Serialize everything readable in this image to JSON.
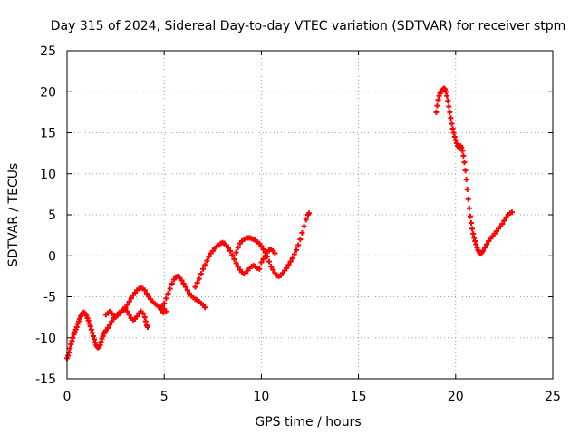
{
  "chart_data": {
    "type": "scatter",
    "title": "Day 315 of 2024, Sidereal Day-to-day VTEC variation (SDTVAR) for receiver stpm",
    "xlabel": "GPS time / hours",
    "ylabel": "SDTVAR / TECUs",
    "xlim": [
      0,
      25
    ],
    "ylim": [
      -15,
      25
    ],
    "xticks": [
      0,
      5,
      10,
      15,
      20,
      25
    ],
    "yticks": [
      -15,
      -10,
      -5,
      0,
      5,
      10,
      15,
      20,
      25
    ],
    "grid": true,
    "marker": "+",
    "series": [
      {
        "name": "SDTVAR",
        "color": "#ff0000",
        "points": [
          [
            0.0,
            -12.5
          ],
          [
            0.05,
            -12.2
          ],
          [
            0.1,
            -11.8
          ],
          [
            0.15,
            -11.3
          ],
          [
            0.2,
            -10.8
          ],
          [
            0.25,
            -10.4
          ],
          [
            0.3,
            -10.0
          ],
          [
            0.35,
            -9.6
          ],
          [
            0.4,
            -9.3
          ],
          [
            0.45,
            -9.0
          ],
          [
            0.5,
            -8.7
          ],
          [
            0.55,
            -8.3
          ],
          [
            0.6,
            -8.0
          ],
          [
            0.65,
            -7.7
          ],
          [
            0.7,
            -7.4
          ],
          [
            0.75,
            -7.2
          ],
          [
            0.8,
            -7.0
          ],
          [
            0.85,
            -6.9
          ],
          [
            0.9,
            -7.0
          ],
          [
            0.95,
            -7.1
          ],
          [
            1.0,
            -7.3
          ],
          [
            1.05,
            -7.6
          ],
          [
            1.1,
            -7.9
          ],
          [
            1.15,
            -8.3
          ],
          [
            1.2,
            -8.6
          ],
          [
            1.25,
            -9.0
          ],
          [
            1.3,
            -9.4
          ],
          [
            1.35,
            -9.8
          ],
          [
            1.4,
            -10.2
          ],
          [
            1.45,
            -10.6
          ],
          [
            1.5,
            -10.9
          ],
          [
            1.55,
            -11.1
          ],
          [
            1.6,
            -11.2
          ],
          [
            1.65,
            -11.1
          ],
          [
            1.7,
            -10.9
          ],
          [
            1.75,
            -10.5
          ],
          [
            1.8,
            -10.1
          ],
          [
            1.85,
            -9.8
          ],
          [
            1.9,
            -9.5
          ],
          [
            1.95,
            -9.3
          ],
          [
            2.0,
            -9.1
          ],
          [
            2.1,
            -8.8
          ],
          [
            2.2,
            -8.4
          ],
          [
            2.3,
            -8.0
          ],
          [
            2.4,
            -7.6
          ],
          [
            2.5,
            -7.3
          ],
          [
            2.6,
            -7.1
          ],
          [
            2.7,
            -6.9
          ],
          [
            2.8,
            -6.8
          ],
          [
            2.9,
            -6.6
          ],
          [
            3.0,
            -6.3
          ],
          [
            3.1,
            -6.0
          ],
          [
            3.2,
            -5.6
          ],
          [
            3.3,
            -5.2
          ],
          [
            3.4,
            -4.8
          ],
          [
            3.5,
            -4.5
          ],
          [
            3.6,
            -4.2
          ],
          [
            3.7,
            -4.0
          ],
          [
            3.8,
            -3.9
          ],
          [
            3.9,
            -4.0
          ],
          [
            4.0,
            -4.2
          ],
          [
            4.1,
            -4.6
          ],
          [
            4.2,
            -5.0
          ],
          [
            4.3,
            -5.3
          ],
          [
            4.4,
            -5.6
          ],
          [
            4.5,
            -5.8
          ],
          [
            4.6,
            -6.0
          ],
          [
            4.7,
            -6.2
          ],
          [
            4.8,
            -6.3
          ],
          [
            4.9,
            -6.2
          ],
          [
            5.0,
            -5.8
          ],
          [
            5.1,
            -5.2
          ],
          [
            5.2,
            -4.6
          ],
          [
            5.3,
            -4.0
          ],
          [
            5.4,
            -3.4
          ],
          [
            5.5,
            -2.9
          ],
          [
            5.6,
            -2.6
          ],
          [
            5.7,
            -2.5
          ],
          [
            5.8,
            -2.7
          ],
          [
            5.9,
            -3.0
          ],
          [
            6.0,
            -3.4
          ],
          [
            6.1,
            -3.8
          ],
          [
            6.2,
            -4.2
          ],
          [
            6.3,
            -4.6
          ],
          [
            6.4,
            -4.9
          ],
          [
            6.5,
            -5.1
          ],
          [
            6.6,
            -5.3
          ],
          [
            6.7,
            -5.4
          ],
          [
            6.8,
            -5.6
          ],
          [
            6.9,
            -5.8
          ],
          [
            7.0,
            -6.0
          ],
          [
            7.1,
            -6.3
          ],
          [
            2.0,
            -7.2
          ],
          [
            2.1,
            -7.0
          ],
          [
            2.2,
            -6.8
          ],
          [
            2.3,
            -7.0
          ],
          [
            2.4,
            -7.3
          ],
          [
            2.5,
            -7.5
          ],
          [
            2.6,
            -7.3
          ],
          [
            2.7,
            -7.0
          ],
          [
            2.8,
            -6.7
          ],
          [
            2.9,
            -6.5
          ],
          [
            3.0,
            -6.5
          ],
          [
            3.1,
            -6.8
          ],
          [
            3.2,
            -7.2
          ],
          [
            3.3,
            -7.6
          ],
          [
            3.4,
            -7.8
          ],
          [
            3.5,
            -7.7
          ],
          [
            3.6,
            -7.4
          ],
          [
            3.7,
            -7.0
          ],
          [
            3.8,
            -6.8
          ],
          [
            3.9,
            -7.0
          ],
          [
            4.0,
            -7.5
          ],
          [
            4.05,
            -8.0
          ],
          [
            4.1,
            -8.5
          ],
          [
            4.15,
            -8.7
          ],
          [
            5.0,
            -6.5
          ],
          [
            5.1,
            -6.8
          ],
          [
            4.95,
            -6.9
          ],
          [
            4.85,
            -6.6
          ],
          [
            6.6,
            -3.8
          ],
          [
            6.7,
            -3.3
          ],
          [
            6.8,
            -2.8
          ],
          [
            6.9,
            -2.2
          ],
          [
            7.0,
            -1.6
          ],
          [
            7.1,
            -1.1
          ],
          [
            7.2,
            -0.6
          ],
          [
            7.3,
            -0.1
          ],
          [
            7.4,
            0.3
          ],
          [
            7.5,
            0.6
          ],
          [
            7.6,
            0.9
          ],
          [
            7.7,
            1.1
          ],
          [
            7.8,
            1.3
          ],
          [
            7.9,
            1.5
          ],
          [
            8.0,
            1.6
          ],
          [
            8.1,
            1.5
          ],
          [
            8.2,
            1.3
          ],
          [
            8.3,
            1.0
          ],
          [
            8.4,
            0.6
          ],
          [
            8.5,
            0.1
          ],
          [
            8.6,
            -0.4
          ],
          [
            8.7,
            -0.9
          ],
          [
            8.8,
            -1.3
          ],
          [
            8.9,
            -1.7
          ],
          [
            9.0,
            -2.0
          ],
          [
            9.1,
            -2.2
          ],
          [
            9.2,
            -2.1
          ],
          [
            9.3,
            -1.8
          ],
          [
            9.4,
            -1.5
          ],
          [
            9.5,
            -1.3
          ],
          [
            9.6,
            -1.2
          ],
          [
            9.7,
            -1.3
          ],
          [
            9.8,
            -1.5
          ],
          [
            9.9,
            -1.6
          ],
          [
            8.7,
            0.4
          ],
          [
            8.8,
            1.0
          ],
          [
            8.9,
            1.5
          ],
          [
            9.0,
            1.8
          ],
          [
            9.1,
            2.0
          ],
          [
            9.2,
            2.1
          ],
          [
            9.3,
            2.2
          ],
          [
            9.4,
            2.2
          ],
          [
            9.5,
            2.1
          ],
          [
            9.6,
            2.0
          ],
          [
            9.7,
            1.9
          ],
          [
            9.8,
            1.7
          ],
          [
            9.9,
            1.5
          ],
          [
            10.0,
            1.2
          ],
          [
            10.1,
            0.8
          ],
          [
            10.2,
            0.4
          ],
          [
            10.3,
            -0.1
          ],
          [
            10.4,
            -0.7
          ],
          [
            10.5,
            -1.3
          ],
          [
            10.6,
            -1.7
          ],
          [
            10.7,
            -2.1
          ],
          [
            10.8,
            -2.4
          ],
          [
            10.9,
            -2.5
          ],
          [
            11.0,
            -2.4
          ],
          [
            11.1,
            -2.1
          ],
          [
            11.2,
            -1.8
          ],
          [
            11.3,
            -1.5
          ],
          [
            11.4,
            -1.1
          ],
          [
            11.5,
            -0.7
          ],
          [
            11.6,
            -0.3
          ],
          [
            11.7,
            0.2
          ],
          [
            11.8,
            0.7
          ],
          [
            11.9,
            1.3
          ],
          [
            12.0,
            2.0
          ],
          [
            12.1,
            2.8
          ],
          [
            12.2,
            3.6
          ],
          [
            12.3,
            4.4
          ],
          [
            12.4,
            5.0
          ],
          [
            12.45,
            5.2
          ],
          [
            10.0,
            -0.8
          ],
          [
            10.1,
            -0.4
          ],
          [
            10.2,
            0.0
          ],
          [
            10.3,
            0.4
          ],
          [
            10.4,
            0.7
          ],
          [
            10.5,
            0.8
          ],
          [
            10.6,
            0.6
          ],
          [
            10.7,
            0.3
          ],
          [
            19.0,
            17.5
          ],
          [
            19.05,
            18.3
          ],
          [
            19.1,
            19.0
          ],
          [
            19.15,
            19.5
          ],
          [
            19.2,
            19.8
          ],
          [
            19.25,
            20.0
          ],
          [
            19.3,
            20.2
          ],
          [
            19.35,
            20.3
          ],
          [
            19.4,
            20.4
          ],
          [
            19.45,
            20.3
          ],
          [
            19.5,
            20.0
          ],
          [
            19.55,
            19.5
          ],
          [
            19.6,
            18.9
          ],
          [
            19.65,
            18.2
          ],
          [
            19.7,
            17.5
          ],
          [
            19.75,
            16.8
          ],
          [
            19.8,
            16.1
          ],
          [
            19.85,
            15.5
          ],
          [
            19.9,
            15.0
          ],
          [
            19.95,
            14.5
          ],
          [
            20.0,
            14.1
          ],
          [
            20.05,
            13.7
          ],
          [
            20.1,
            13.4
          ],
          [
            20.15,
            13.3
          ],
          [
            20.2,
            13.3
          ],
          [
            20.25,
            13.4
          ],
          [
            20.3,
            13.2
          ],
          [
            20.35,
            12.8
          ],
          [
            20.4,
            12.2
          ],
          [
            20.45,
            11.4
          ],
          [
            20.5,
            10.4
          ],
          [
            20.55,
            9.3
          ],
          [
            20.6,
            8.1
          ],
          [
            20.65,
            6.9
          ],
          [
            20.7,
            5.8
          ],
          [
            20.75,
            4.8
          ],
          [
            20.8,
            4.0
          ],
          [
            20.85,
            3.3
          ],
          [
            20.9,
            2.7
          ],
          [
            20.95,
            2.2
          ],
          [
            21.0,
            1.8
          ],
          [
            21.05,
            1.4
          ],
          [
            21.1,
            1.0
          ],
          [
            21.15,
            0.7
          ],
          [
            21.2,
            0.5
          ],
          [
            21.25,
            0.3
          ],
          [
            21.3,
            0.3
          ],
          [
            21.35,
            0.4
          ],
          [
            21.4,
            0.6
          ],
          [
            21.5,
            1.0
          ],
          [
            21.6,
            1.4
          ],
          [
            21.7,
            1.8
          ],
          [
            21.8,
            2.1
          ],
          [
            21.9,
            2.4
          ],
          [
            22.0,
            2.7
          ],
          [
            22.1,
            3.0
          ],
          [
            22.2,
            3.3
          ],
          [
            22.3,
            3.6
          ],
          [
            22.4,
            3.9
          ],
          [
            22.5,
            4.3
          ],
          [
            22.6,
            4.7
          ],
          [
            22.7,
            5.0
          ],
          [
            22.8,
            5.2
          ],
          [
            22.9,
            5.3
          ]
        ]
      }
    ]
  }
}
